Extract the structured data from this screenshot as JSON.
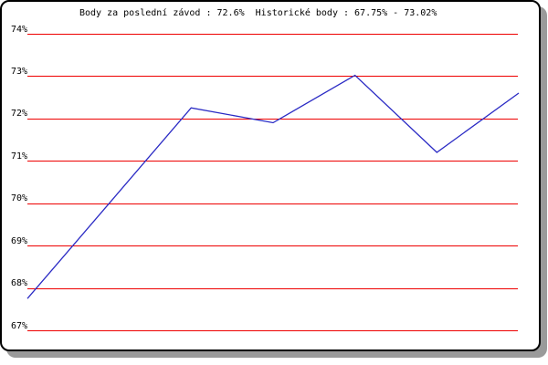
{
  "window": {
    "background": "#ffffff",
    "frame_border_color": "#000000",
    "shadow_color": "#9a9a9a"
  },
  "chart_data": {
    "type": "line",
    "title": "Body za poslední závod : 72.6%  Historické body : 67.75% - 73.02%",
    "last_race_points": "72.6%",
    "historical_min": "67.75%",
    "historical_max": "73.02%",
    "series": [
      {
        "name": "body",
        "values": [
          67.75,
          70.0,
          72.25,
          71.9,
          73.02,
          71.2,
          72.6
        ]
      }
    ],
    "yticks": [
      74,
      73,
      72,
      71,
      70,
      69,
      68,
      67
    ],
    "ytick_labels": [
      "74%",
      "73%",
      "72%",
      "71%",
      "70%",
      "69%",
      "68%",
      "67%"
    ],
    "ylim": [
      66.55,
      74.45
    ],
    "grid": true,
    "legend": "none",
    "xtick_labels": [],
    "gridline_color": "#ee0000",
    "line_color": "#2a2ac4",
    "text_color": "#000000"
  }
}
